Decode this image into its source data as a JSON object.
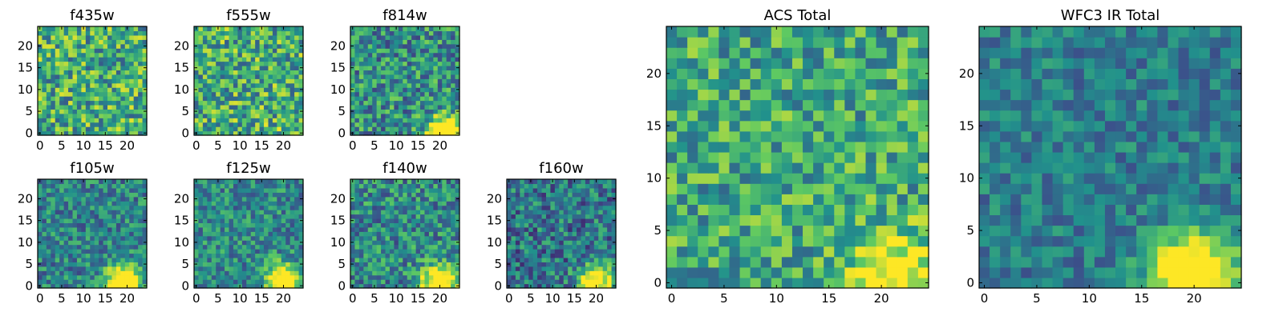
{
  "colormap": [
    "#440154",
    "#3b528b",
    "#21918c",
    "#5ec962",
    "#fde725"
  ],
  "chart_data": [
    {
      "type": "heatmap",
      "title": "f435w",
      "grid_size": 25,
      "xlim": [
        0,
        24
      ],
      "ylim": [
        0,
        24
      ],
      "xticks": [
        0,
        5,
        10,
        15,
        20
      ],
      "yticks": [
        0,
        5,
        10,
        15,
        20
      ],
      "source_center": [
        20,
        1
      ],
      "source_strength": 0.05,
      "noise_level": 0.55,
      "base_level": 0.62,
      "seed": 11
    },
    {
      "type": "heatmap",
      "title": "f555w",
      "grid_size": 25,
      "xlim": [
        0,
        24
      ],
      "ylim": [
        0,
        24
      ],
      "xticks": [
        0,
        5,
        10,
        15,
        20
      ],
      "yticks": [
        0,
        5,
        10,
        15,
        20
      ],
      "source_center": [
        20,
        1
      ],
      "source_strength": 0.05,
      "noise_level": 0.55,
      "base_level": 0.62,
      "seed": 23
    },
    {
      "type": "heatmap",
      "title": "f814w",
      "grid_size": 25,
      "xlim": [
        0,
        24
      ],
      "ylim": [
        0,
        24
      ],
      "xticks": [
        0,
        5,
        10,
        15,
        20
      ],
      "yticks": [
        0,
        5,
        10,
        15,
        20
      ],
      "source_center": [
        21,
        0
      ],
      "source_strength": 0.9,
      "noise_level": 0.5,
      "base_level": 0.5,
      "seed": 37
    },
    {
      "type": "heatmap",
      "title": "f105w",
      "grid_size": 25,
      "xlim": [
        0,
        24
      ],
      "ylim": [
        0,
        24
      ],
      "xticks": [
        0,
        5,
        10,
        15,
        20
      ],
      "yticks": [
        0,
        5,
        10,
        15,
        20
      ],
      "source_center": [
        19,
        1
      ],
      "source_strength": 0.9,
      "noise_level": 0.4,
      "base_level": 0.45,
      "seed": 41
    },
    {
      "type": "heatmap",
      "title": "f125w",
      "grid_size": 25,
      "xlim": [
        0,
        24
      ],
      "ylim": [
        0,
        24
      ],
      "xticks": [
        0,
        5,
        10,
        15,
        20
      ],
      "yticks": [
        0,
        5,
        10,
        15,
        20
      ],
      "source_center": [
        20,
        1
      ],
      "source_strength": 0.9,
      "noise_level": 0.4,
      "base_level": 0.47,
      "seed": 53
    },
    {
      "type": "heatmap",
      "title": "f140w",
      "grid_size": 25,
      "xlim": [
        0,
        24
      ],
      "ylim": [
        0,
        24
      ],
      "xticks": [
        0,
        5,
        10,
        15,
        20
      ],
      "yticks": [
        0,
        5,
        10,
        15,
        20
      ],
      "source_center": [
        20,
        1
      ],
      "source_strength": 0.9,
      "noise_level": 0.45,
      "base_level": 0.48,
      "seed": 67
    },
    {
      "type": "heatmap",
      "title": "f160w",
      "grid_size": 25,
      "xlim": [
        0,
        24
      ],
      "ylim": [
        0,
        24
      ],
      "xticks": [
        0,
        5,
        10,
        15,
        20
      ],
      "yticks": [
        0,
        5,
        10,
        15,
        20
      ],
      "source_center": [
        20,
        1
      ],
      "source_strength": 0.85,
      "noise_level": 0.45,
      "base_level": 0.4,
      "seed": 79
    },
    {
      "type": "heatmap",
      "title": "ACS Total",
      "grid_size": 25,
      "xlim": [
        0,
        24
      ],
      "ylim": [
        0,
        24
      ],
      "xticks": [
        0,
        5,
        10,
        15,
        20
      ],
      "yticks": [
        0,
        5,
        10,
        15,
        20
      ],
      "source_center": [
        21,
        1
      ],
      "source_strength": 0.55,
      "noise_level": 0.45,
      "base_level": 0.6,
      "seed": 97
    },
    {
      "type": "heatmap",
      "title": "WFC3 IR Total",
      "grid_size": 25,
      "xlim": [
        0,
        24
      ],
      "ylim": [
        0,
        24
      ],
      "xticks": [
        0,
        5,
        10,
        15,
        20
      ],
      "yticks": [
        0,
        5,
        10,
        15,
        20
      ],
      "source_center": [
        20,
        1
      ],
      "source_strength": 0.95,
      "noise_level": 0.3,
      "base_level": 0.42,
      "seed": 131
    }
  ]
}
